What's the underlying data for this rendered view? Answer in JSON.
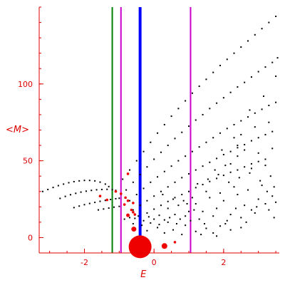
{
  "chart_data": {
    "type": "scatter",
    "xlabel": "E",
    "ylabel": "<M>",
    "xlim": [
      -3.3,
      3.6
    ],
    "ylim": [
      -10,
      150
    ],
    "xticks": [
      -2,
      0,
      2
    ],
    "xtick_labels": [
      "-2",
      "0",
      "2"
    ],
    "yticks": [
      0,
      50,
      100
    ],
    "ytick_labels": [
      "0",
      "50",
      "100"
    ],
    "grid": false,
    "colors": {
      "axis": "#dd0000",
      "points": "#000000",
      "highlight": "#ee0000",
      "green_line": "#008000",
      "magenta_line": "#cc00cc",
      "blue_line": "#0000ff"
    },
    "vertical_lines": [
      {
        "x": -1.2,
        "color": "green_line"
      },
      {
        "x": -0.95,
        "color": "magenta_line"
      },
      {
        "x": -0.4,
        "color": "blue_line"
      },
      {
        "x": 1.05,
        "color": "magenta_line"
      }
    ],
    "black_points": [
      [
        -3.2,
        30
      ],
      [
        -3.05,
        31.3
      ],
      [
        -2.9,
        32.6
      ],
      [
        -2.75,
        33.8
      ],
      [
        -2.6,
        34.8
      ],
      [
        -2.45,
        35.7
      ],
      [
        -2.3,
        36.4
      ],
      [
        -2.15,
        36.9
      ],
      [
        -2.0,
        37.2
      ],
      [
        -1.85,
        37.2
      ],
      [
        -1.7,
        36.9
      ],
      [
        -1.55,
        36.1
      ],
      [
        -1.4,
        34.8
      ],
      [
        -1.3,
        33.2
      ],
      [
        -2.7,
        25.5
      ],
      [
        -2.55,
        26.8
      ],
      [
        -2.4,
        27.9
      ],
      [
        -2.25,
        28.8
      ],
      [
        -2.1,
        29.6
      ],
      [
        -1.95,
        30.2
      ],
      [
        -1.8,
        30.7
      ],
      [
        -1.65,
        31.1
      ],
      [
        -1.5,
        31.3
      ],
      [
        -1.35,
        31.4
      ],
      [
        -1.2,
        31.2
      ],
      [
        -1.1,
        30.7
      ],
      [
        -2.3,
        19.5
      ],
      [
        -2.15,
        20.5
      ],
      [
        -2.0,
        21.4
      ],
      [
        -1.85,
        22.2
      ],
      [
        -1.7,
        22.9
      ],
      [
        -1.55,
        23.6
      ],
      [
        -1.4,
        24.2
      ],
      [
        -1.25,
        24.8
      ],
      [
        -1.1,
        25.3
      ],
      [
        -1.0,
        25.6
      ],
      [
        -1.6,
        18
      ],
      [
        -1.45,
        18.6
      ],
      [
        -1.3,
        19.2
      ],
      [
        -1.15,
        19.8
      ],
      [
        -1.0,
        20.3
      ],
      [
        -0.9,
        38
      ],
      [
        -0.7,
        44
      ],
      [
        -0.5,
        50
      ],
      [
        -0.3,
        56
      ],
      [
        -0.1,
        62
      ],
      [
        0.1,
        68
      ],
      [
        0.3,
        73.5
      ],
      [
        0.5,
        79
      ],
      [
        0.7,
        84
      ],
      [
        0.9,
        89
      ],
      [
        1.1,
        94
      ],
      [
        1.3,
        98.5
      ],
      [
        1.5,
        103
      ],
      [
        1.7,
        107.5
      ],
      [
        1.9,
        112
      ],
      [
        2.1,
        116
      ],
      [
        2.3,
        120
      ],
      [
        2.5,
        124
      ],
      [
        2.7,
        128
      ],
      [
        2.9,
        132
      ],
      [
        3.1,
        136
      ],
      [
        3.3,
        140
      ],
      [
        3.5,
        144
      ],
      [
        -0.8,
        31
      ],
      [
        -0.6,
        36
      ],
      [
        -0.4,
        41
      ],
      [
        -0.2,
        46
      ],
      [
        0.0,
        51
      ],
      [
        0.2,
        55.5
      ],
      [
        0.4,
        60
      ],
      [
        0.6,
        64.5
      ],
      [
        0.8,
        68.5
      ],
      [
        1.0,
        72.5
      ],
      [
        1.2,
        76.5
      ],
      [
        1.4,
        80
      ],
      [
        1.6,
        84
      ],
      [
        1.8,
        87.5
      ],
      [
        2.0,
        91
      ],
      [
        2.2,
        94.5
      ],
      [
        2.4,
        98
      ],
      [
        2.6,
        101
      ],
      [
        2.8,
        104.5
      ],
      [
        3.0,
        108
      ],
      [
        3.2,
        111
      ],
      [
        3.4,
        114
      ],
      [
        3.55,
        117
      ],
      [
        -0.7,
        24
      ],
      [
        -0.5,
        28
      ],
      [
        -0.3,
        32
      ],
      [
        -0.1,
        36
      ],
      [
        0.1,
        39.5
      ],
      [
        0.3,
        43
      ],
      [
        0.5,
        46.5
      ],
      [
        0.7,
        50
      ],
      [
        0.9,
        53
      ],
      [
        1.1,
        56
      ],
      [
        1.3,
        59
      ],
      [
        1.5,
        62
      ],
      [
        1.7,
        65
      ],
      [
        1.9,
        68
      ],
      [
        2.1,
        71
      ],
      [
        2.3,
        73.5
      ],
      [
        2.5,
        76
      ],
      [
        2.7,
        78.5
      ],
      [
        2.9,
        81
      ],
      [
        3.1,
        83.5
      ],
      [
        3.3,
        86
      ],
      [
        3.5,
        88
      ],
      [
        -0.6,
        18
      ],
      [
        -0.4,
        21
      ],
      [
        -0.2,
        24
      ],
      [
        0.0,
        27
      ],
      [
        0.2,
        30
      ],
      [
        0.4,
        33
      ],
      [
        0.6,
        36
      ],
      [
        0.8,
        39
      ],
      [
        1.0,
        41.5
      ],
      [
        1.2,
        44
      ],
      [
        1.4,
        46.5
      ],
      [
        1.6,
        49
      ],
      [
        1.8,
        51.5
      ],
      [
        2.0,
        54
      ],
      [
        2.2,
        56
      ],
      [
        2.4,
        58.5
      ],
      [
        2.6,
        60.5
      ],
      [
        2.8,
        63
      ],
      [
        3.0,
        65
      ],
      [
        3.2,
        67
      ],
      [
        3.4,
        69
      ],
      [
        -0.2,
        16
      ],
      [
        0.0,
        18.5
      ],
      [
        0.2,
        21
      ],
      [
        0.4,
        23.5
      ],
      [
        0.6,
        26
      ],
      [
        0.8,
        28
      ],
      [
        1.0,
        30
      ],
      [
        1.2,
        32.5
      ],
      [
        1.4,
        34.5
      ],
      [
        1.6,
        36.5
      ],
      [
        1.8,
        38.5
      ],
      [
        2.0,
        40.5
      ],
      [
        2.2,
        42.5
      ],
      [
        2.4,
        44
      ],
      [
        2.6,
        46
      ],
      [
        2.8,
        48
      ],
      [
        3.0,
        49.5
      ],
      [
        3.2,
        51
      ],
      [
        -0.85,
        12
      ],
      [
        -0.7,
        13
      ],
      [
        -0.55,
        12.5
      ],
      [
        -0.45,
        14
      ],
      [
        -0.3,
        11
      ],
      [
        -0.15,
        13.5
      ],
      [
        0.0,
        12
      ],
      [
        0.15,
        14.5
      ],
      [
        0.3,
        11.5
      ],
      [
        0.45,
        13
      ],
      [
        0.6,
        15
      ],
      [
        0.75,
        12
      ],
      [
        0.9,
        14
      ],
      [
        1.05,
        11
      ],
      [
        -0.6,
        9
      ],
      [
        -0.35,
        8
      ],
      [
        -0.1,
        9.5
      ],
      [
        0.15,
        8.5
      ],
      [
        0.4,
        10
      ],
      [
        0.65,
        9
      ],
      [
        0.9,
        8
      ],
      [
        1.2,
        4
      ],
      [
        1.5,
        6
      ],
      [
        1.7,
        3
      ],
      [
        1.9,
        7.5
      ],
      [
        2.2,
        5
      ],
      [
        2.5,
        6.5
      ],
      [
        1.35,
        2
      ],
      [
        1.8,
        1
      ],
      [
        2.05,
        9
      ],
      [
        0.3,
        3
      ],
      [
        0.55,
        5
      ],
      [
        0.8,
        2
      ],
      [
        0.1,
        6.5
      ],
      [
        -0.2,
        4.5
      ],
      [
        1.2,
        22
      ],
      [
        1.4,
        17
      ],
      [
        1.6,
        26
      ],
      [
        1.8,
        19
      ],
      [
        2.0,
        24
      ],
      [
        2.2,
        15
      ],
      [
        2.4,
        28
      ],
      [
        2.6,
        21
      ],
      [
        2.8,
        18
      ],
      [
        3.0,
        25
      ],
      [
        3.2,
        22
      ],
      [
        3.4,
        27
      ],
      [
        1.3,
        12
      ],
      [
        1.5,
        30
      ],
      [
        1.7,
        14
      ],
      [
        1.9,
        29
      ],
      [
        2.1,
        11
      ],
      [
        2.3,
        33
      ],
      [
        2.5,
        13
      ],
      [
        2.7,
        31
      ],
      [
        2.9,
        16
      ],
      [
        3.1,
        34
      ],
      [
        3.3,
        18
      ],
      [
        3.5,
        23
      ],
      [
        1.25,
        35
      ],
      [
        1.55,
        38
      ],
      [
        1.85,
        41
      ],
      [
        2.15,
        36
      ],
      [
        2.45,
        39
      ],
      [
        2.75,
        42
      ],
      [
        3.05,
        37
      ],
      [
        3.35,
        40
      ],
      [
        1.45,
        9
      ],
      [
        2.65,
        10
      ],
      [
        3.45,
        13
      ],
      [
        2.35,
        19
      ],
      [
        2.95,
        20
      ],
      [
        1.15,
        18
      ],
      [
        3.25,
        30
      ],
      [
        0.4,
        19
      ],
      [
        0.7,
        21
      ],
      [
        1.0,
        17
      ],
      [
        0.55,
        25
      ],
      [
        0.85,
        24
      ],
      [
        1.1,
        26
      ],
      [
        0.95,
        22
      ],
      [
        0.25,
        28
      ],
      [
        2.2,
        48
      ],
      [
        2.4,
        53
      ],
      [
        2.6,
        57
      ],
      [
        2.8,
        45
      ],
      [
        3.0,
        55
      ],
      [
        3.2,
        47
      ],
      [
        3.4,
        58
      ],
      [
        2.5,
        67
      ],
      [
        2.9,
        72
      ],
      [
        3.3,
        75
      ],
      [
        2.75,
        83
      ],
      [
        3.15,
        92
      ],
      [
        3.5,
        105
      ],
      [
        2.4,
        60
      ],
      [
        3.45,
        33
      ],
      [
        1.75,
        44
      ],
      [
        2.05,
        47
      ],
      [
        1.95,
        57
      ],
      [
        2.3,
        65
      ]
    ],
    "red_points": [
      [
        -1.55,
        27
      ],
      [
        -1.35,
        24.5
      ],
      [
        -1.1,
        30
      ],
      [
        -0.95,
        28.5
      ],
      [
        -0.82,
        26
      ],
      [
        -0.75,
        24
      ],
      [
        -0.6,
        22.5
      ],
      [
        -0.85,
        21.5
      ],
      [
        -0.65,
        18
      ],
      [
        -0.55,
        15
      ],
      [
        -0.6,
        16.5
      ],
      [
        -0.6,
        6
      ],
      [
        0.6,
        -3
      ],
      [
        -0.75,
        41.5
      ]
    ],
    "large_red_points": [
      {
        "x": -0.4,
        "y": -6,
        "r": 16
      },
      {
        "x": 0.3,
        "y": -5.5,
        "r": 4
      },
      {
        "x": -0.58,
        "y": 5.5,
        "r": 3.5
      },
      {
        "x": -0.75,
        "y": 14.5,
        "r": 2.5
      }
    ]
  }
}
